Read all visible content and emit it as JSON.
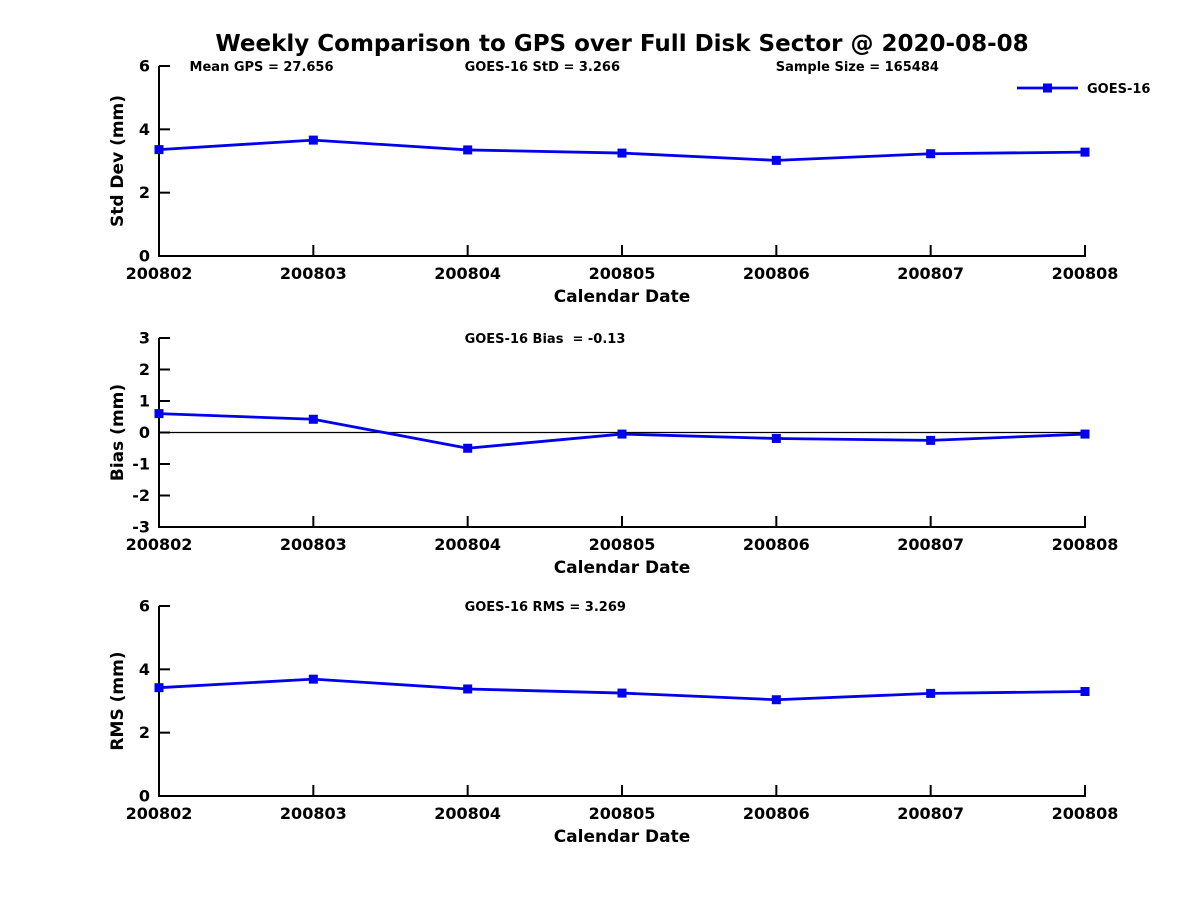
{
  "title": "Weekly Comparison to GPS over Full Disk Sector @ 2020-08-08",
  "colors": {
    "series_blue": "#0000ee",
    "axis": "#000000",
    "background": "#ffffff"
  },
  "legend": {
    "label": "GOES-16",
    "marker": "filled-square",
    "position": "top-right"
  },
  "chart_data": [
    {
      "type": "line",
      "name": "std-dev-panel",
      "annotations": [
        {
          "text": "Mean GPS = 27.656",
          "x": 0.033
        },
        {
          "text": "GOES-16 StD = 3.266",
          "x": 0.33
        },
        {
          "text": "Sample Size = 165484",
          "x": 0.666
        }
      ],
      "xlabel": "Calendar Date",
      "ylabel": "Std Dev (mm)",
      "ylim": [
        0,
        6
      ],
      "yticks": [
        0,
        2,
        4,
        6
      ],
      "grid": false,
      "zero_line": false,
      "legend": true,
      "categories": [
        "200802",
        "200803",
        "200804",
        "200805",
        "200806",
        "200807",
        "200808"
      ],
      "series": [
        {
          "name": "GOES-16",
          "color": "#0000ee",
          "values": [
            3.36,
            3.66,
            3.35,
            3.25,
            3.02,
            3.23,
            3.28
          ]
        }
      ]
    },
    {
      "type": "line",
      "name": "bias-panel",
      "annotations": [
        {
          "text": "GOES-16 Bias  = -0.13",
          "x": 0.33
        }
      ],
      "xlabel": "Calendar Date",
      "ylabel": "Bias (mm)",
      "ylim": [
        -3,
        3
      ],
      "yticks": [
        -3,
        -2,
        -1,
        0,
        1,
        2,
        3
      ],
      "grid": false,
      "zero_line": true,
      "legend": false,
      "categories": [
        "200802",
        "200803",
        "200804",
        "200805",
        "200806",
        "200807",
        "200808"
      ],
      "series": [
        {
          "name": "GOES-16",
          "color": "#0000ee",
          "values": [
            0.6,
            0.42,
            -0.5,
            -0.05,
            -0.19,
            -0.25,
            -0.05
          ]
        }
      ]
    },
    {
      "type": "line",
      "name": "rms-panel",
      "annotations": [
        {
          "text": "GOES-16 RMS = 3.269",
          "x": 0.33
        }
      ],
      "xlabel": "Calendar Date",
      "ylabel": "RMS (mm)",
      "ylim": [
        0,
        6
      ],
      "yticks": [
        0,
        2,
        4,
        6
      ],
      "grid": false,
      "zero_line": false,
      "legend": false,
      "categories": [
        "200802",
        "200803",
        "200804",
        "200805",
        "200806",
        "200807",
        "200808"
      ],
      "series": [
        {
          "name": "GOES-16",
          "color": "#0000ee",
          "values": [
            3.42,
            3.69,
            3.38,
            3.25,
            3.04,
            3.24,
            3.3
          ]
        }
      ]
    }
  ]
}
